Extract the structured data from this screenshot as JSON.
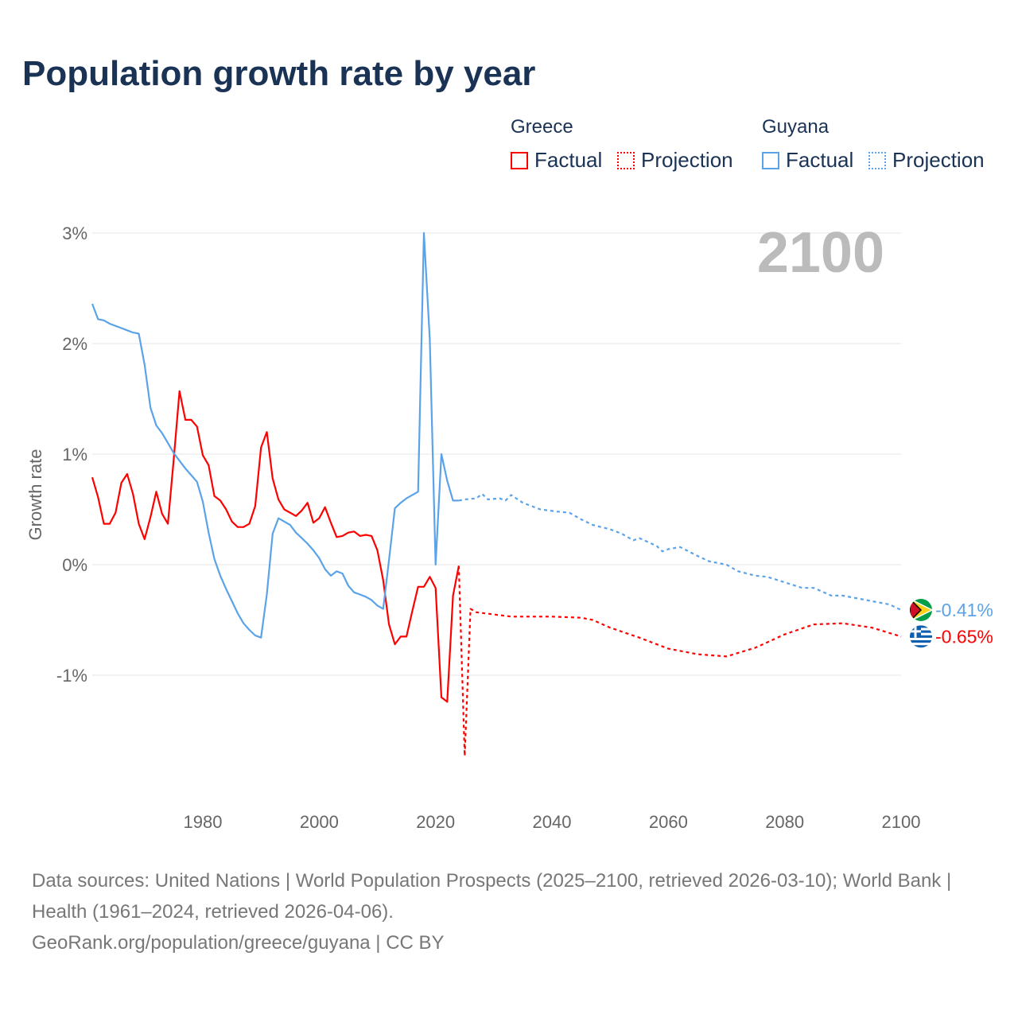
{
  "title": "Population growth rate by year",
  "legend": {
    "groups": [
      {
        "name": "Greece",
        "color": "#ff0000",
        "items": [
          "Factual",
          "Projection"
        ]
      },
      {
        "name": "Guyana",
        "color": "#5ba3e8",
        "items": [
          "Factual",
          "Projection"
        ]
      }
    ]
  },
  "footer": {
    "sources": "Data sources: United Nations | World Population Prospects (2025–2100, retrieved 2026-03-10); World Bank | Health (1961–2024, retrieved 2026-04-06).",
    "credit": "GeoRank.org/population/greece/guyana | CC BY"
  },
  "chart_data": {
    "type": "line",
    "title": "Population growth rate by year",
    "ylabel": "Growth rate",
    "xlabel": "",
    "year_label": "2100",
    "xlim": [
      1961,
      2100
    ],
    "ylim": [
      -2,
      3
    ],
    "xticks": [
      1980,
      2000,
      2020,
      2040,
      2060,
      2080,
      2100
    ],
    "yticks": [
      {
        "v": 3,
        "label": "3%"
      },
      {
        "v": 2,
        "label": "2%"
      },
      {
        "v": 1,
        "label": "1%"
      },
      {
        "v": 0,
        "label": "0%"
      },
      {
        "v": -1,
        "label": "-1%"
      }
    ],
    "grid": true,
    "series": [
      {
        "name": "Greece",
        "kind": "Factual",
        "color": "#ff0000",
        "x": [
          1961,
          1962,
          1963,
          1964,
          1965,
          1966,
          1967,
          1968,
          1969,
          1970,
          1971,
          1972,
          1973,
          1974,
          1975,
          1976,
          1977,
          1978,
          1979,
          1980,
          1981,
          1982,
          1983,
          1984,
          1985,
          1986,
          1987,
          1988,
          1989,
          1990,
          1991,
          1992,
          1993,
          1994,
          1995,
          1996,
          1997,
          1998,
          1999,
          2000,
          2001,
          2002,
          2003,
          2004,
          2005,
          2006,
          2007,
          2008,
          2009,
          2010,
          2011,
          2012,
          2013,
          2014,
          2015,
          2016,
          2017,
          2018,
          2019,
          2020,
          2021,
          2022,
          2023,
          2024
        ],
        "y": [
          0.79,
          0.61,
          0.37,
          0.37,
          0.47,
          0.74,
          0.82,
          0.64,
          0.37,
          0.23,
          0.43,
          0.66,
          0.46,
          0.37,
          0.95,
          1.57,
          1.31,
          1.31,
          1.25,
          0.99,
          0.9,
          0.62,
          0.58,
          0.5,
          0.39,
          0.34,
          0.34,
          0.37,
          0.53,
          1.06,
          1.2,
          0.78,
          0.59,
          0.5,
          0.47,
          0.44,
          0.49,
          0.56,
          0.38,
          0.42,
          0.52,
          0.38,
          0.25,
          0.26,
          0.29,
          0.3,
          0.26,
          0.27,
          0.26,
          0.13,
          -0.14,
          -0.54,
          -0.72,
          -0.65,
          -0.65,
          -0.42,
          -0.2,
          -0.2,
          -0.11,
          -0.21,
          -1.2,
          -1.24,
          -0.28,
          -0.01
        ]
      },
      {
        "name": "Greece",
        "kind": "Projection",
        "color": "#ff0000",
        "x": [
          2024,
          2025,
          2026,
          2027,
          2030,
          2033,
          2040,
          2045,
          2047,
          2050,
          2055,
          2060,
          2065,
          2070,
          2075,
          2080,
          2085,
          2090,
          2095,
          2100
        ],
        "y": [
          -0.01,
          -1.73,
          -0.4,
          -0.43,
          -0.45,
          -0.47,
          -0.47,
          -0.48,
          -0.5,
          -0.57,
          -0.66,
          -0.76,
          -0.81,
          -0.83,
          -0.75,
          -0.63,
          -0.54,
          -0.53,
          -0.57,
          -0.65
        ]
      },
      {
        "name": "Guyana",
        "kind": "Factual",
        "color": "#5ba3e8",
        "x": [
          1961,
          1962,
          1963,
          1964,
          1965,
          1966,
          1967,
          1968,
          1969,
          1970,
          1971,
          1972,
          1973,
          1974,
          1975,
          1976,
          1977,
          1978,
          1979,
          1980,
          1981,
          1982,
          1983,
          1984,
          1985,
          1986,
          1987,
          1988,
          1989,
          1990,
          1991,
          1992,
          1993,
          1994,
          1995,
          1996,
          1997,
          1998,
          1999,
          2000,
          2001,
          2002,
          2003,
          2004,
          2005,
          2006,
          2007,
          2008,
          2009,
          2010,
          2011,
          2012,
          2013,
          2014,
          2015,
          2016,
          2017,
          2018,
          2019,
          2020,
          2021,
          2022,
          2023,
          2024
        ],
        "y": [
          2.36,
          2.22,
          2.21,
          2.18,
          2.16,
          2.14,
          2.12,
          2.1,
          2.09,
          1.81,
          1.42,
          1.26,
          1.19,
          1.1,
          1.01,
          0.94,
          0.87,
          0.81,
          0.75,
          0.57,
          0.29,
          0.05,
          -0.1,
          -0.22,
          -0.33,
          -0.44,
          -0.53,
          -0.59,
          -0.64,
          -0.66,
          -0.27,
          0.28,
          0.42,
          0.39,
          0.36,
          0.29,
          0.24,
          0.19,
          0.13,
          0.06,
          -0.04,
          -0.1,
          -0.06,
          -0.08,
          -0.19,
          -0.25,
          -0.27,
          -0.29,
          -0.32,
          -0.37,
          -0.4,
          0.04,
          0.51,
          0.56,
          0.6,
          0.63,
          0.66,
          3.0,
          2.04,
          0.0,
          1.0,
          0.76,
          0.58,
          0.58
        ]
      },
      {
        "name": "Guyana",
        "kind": "Projection",
        "color": "#5ba3e8",
        "x": [
          2024,
          2025,
          2027,
          2028,
          2029,
          2031,
          2032,
          2033,
          2035,
          2038,
          2041,
          2043,
          2045,
          2047,
          2050,
          2052,
          2054,
          2055,
          2058,
          2059,
          2060,
          2062,
          2065,
          2067,
          2070,
          2072,
          2075,
          2077,
          2080,
          2083,
          2085,
          2088,
          2090,
          2093,
          2095,
          2098,
          2100
        ],
        "y": [
          0.58,
          0.59,
          0.6,
          0.64,
          0.59,
          0.6,
          0.58,
          0.63,
          0.56,
          0.5,
          0.48,
          0.47,
          0.41,
          0.36,
          0.32,
          0.28,
          0.22,
          0.24,
          0.17,
          0.12,
          0.14,
          0.16,
          0.08,
          0.03,
          0.0,
          -0.06,
          -0.1,
          -0.11,
          -0.16,
          -0.21,
          -0.21,
          -0.28,
          -0.28,
          -0.31,
          -0.33,
          -0.36,
          -0.41
        ]
      }
    ],
    "end_labels": [
      {
        "country": "Guyana",
        "label": "-0.41%",
        "value": -0.41,
        "color": "#5ba3e8"
      },
      {
        "country": "Greece",
        "label": "-0.65%",
        "value": -0.65,
        "color": "#ff0000"
      }
    ]
  }
}
